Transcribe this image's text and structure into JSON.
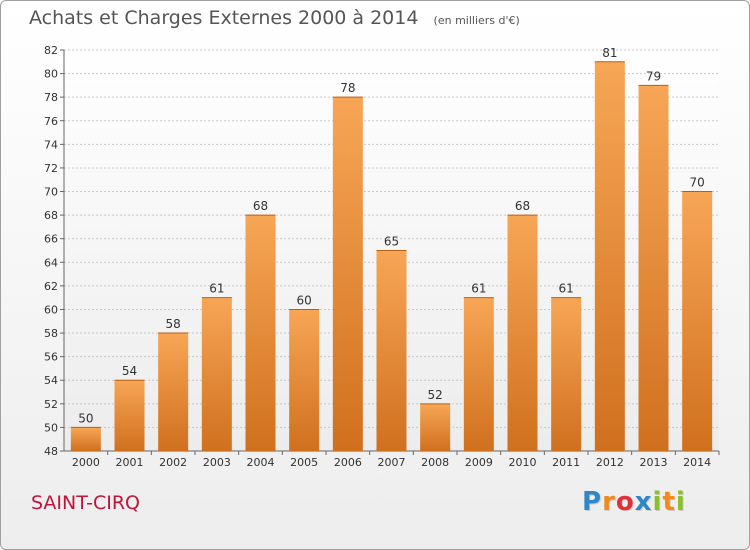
{
  "title": "Achats et Charges Externes 2000 à 2014",
  "subtitle": "(en milliers d'€)",
  "place": "SAINT-CIRQ",
  "logo": {
    "text": "Proxiti",
    "letters": [
      {
        "ch": "P",
        "color": "#2f86c8"
      },
      {
        "ch": "r",
        "color": "#f08a1c"
      },
      {
        "ch": "o",
        "color": "#e0303a"
      },
      {
        "ch": "x",
        "color": "#2f86c8"
      },
      {
        "ch": "i",
        "color": "#8cbf2a"
      },
      {
        "ch": "t",
        "color": "#f08a1c"
      },
      {
        "ch": "i",
        "color": "#8cbf2a"
      }
    ]
  },
  "colors": {
    "bar_top": "#f7a656",
    "bar_bottom": "#d0701e",
    "title": "#555555",
    "place": "#c0143c",
    "grid": "#c8c8c8"
  },
  "chart_data": {
    "type": "bar",
    "categories": [
      "2000",
      "2001",
      "2002",
      "2003",
      "2004",
      "2005",
      "2006",
      "2007",
      "2008",
      "2009",
      "2010",
      "2011",
      "2012",
      "2013",
      "2014"
    ],
    "values": [
      50,
      54,
      58,
      61,
      68,
      60,
      78,
      65,
      52,
      61,
      68,
      61,
      81,
      79,
      70
    ],
    "title": "Achats et Charges Externes 2000 à 2014",
    "subtitle": "(en milliers d'€)",
    "ylim": [
      48,
      82
    ],
    "yticks": [
      48,
      50,
      52,
      54,
      56,
      58,
      60,
      62,
      64,
      66,
      68,
      70,
      72,
      74,
      76,
      78,
      80,
      82
    ],
    "grid": true,
    "data_labels": true
  }
}
